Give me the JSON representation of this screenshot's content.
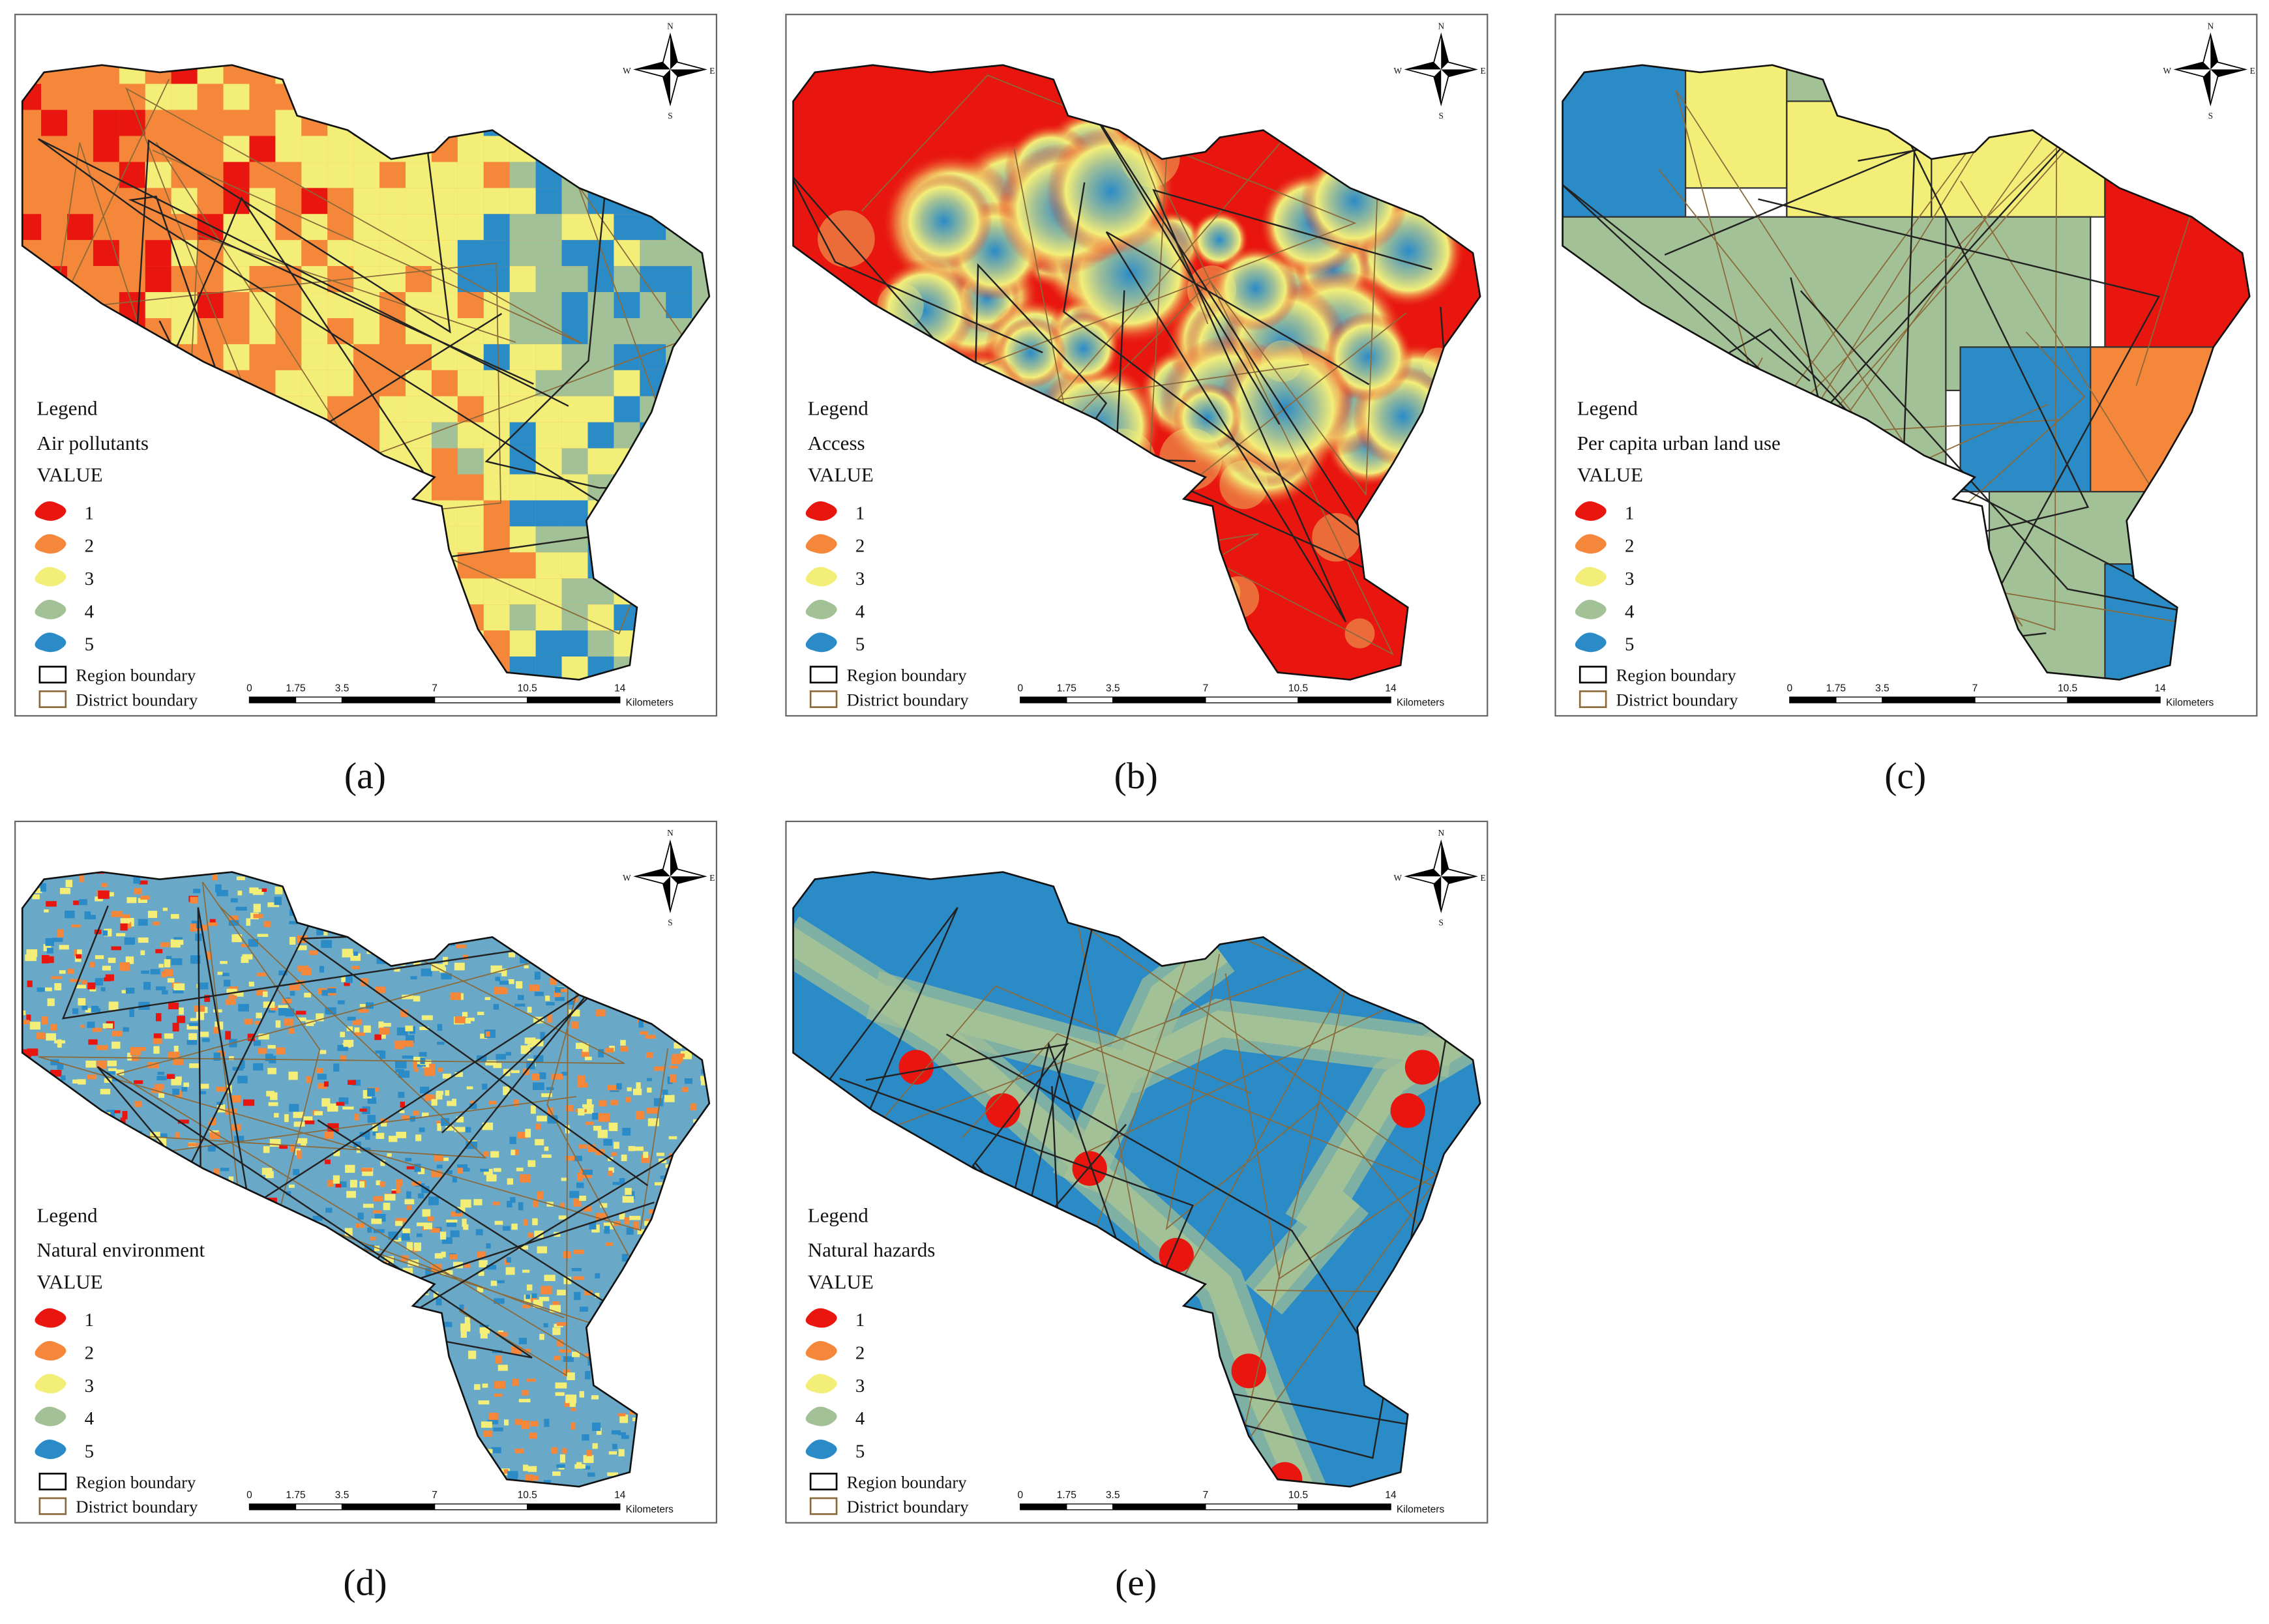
{
  "panels": [
    {
      "label": "(a)",
      "legend": {
        "title": "Legend",
        "layer": "Air pollutants",
        "field": "VALUE"
      }
    },
    {
      "label": "(b)",
      "legend": {
        "title": "Legend",
        "layer": "Access",
        "field": "VALUE"
      }
    },
    {
      "label": "(c)",
      "legend": {
        "title": "Legend",
        "layer": "Per capita urban land use",
        "field": "VALUE"
      }
    },
    {
      "label": "(d)",
      "legend": {
        "title": "Legend",
        "layer": "Natural environment",
        "field": "VALUE"
      }
    },
    {
      "label": "(e)",
      "legend": {
        "title": "Legend",
        "layer": "Natural hazards",
        "field": "VALUE"
      }
    }
  ],
  "classes": [
    {
      "label": "1",
      "color": "#e8160f"
    },
    {
      "label": "2",
      "color": "#f4873a"
    },
    {
      "label": "3",
      "color": "#f3ee78"
    },
    {
      "label": "4",
      "color": "#a3c196"
    },
    {
      "label": "5",
      "color": "#2b8bc7"
    }
  ],
  "boundaries": [
    "Region boundary",
    "District boundary"
  ],
  "scale": {
    "ticks": [
      "0",
      "1.75",
      "3.5",
      "7",
      "10.5",
      "14"
    ],
    "unit": "Kilometers"
  },
  "compass": {
    "n": "N",
    "e": "E",
    "s": "S",
    "w": "W"
  }
}
